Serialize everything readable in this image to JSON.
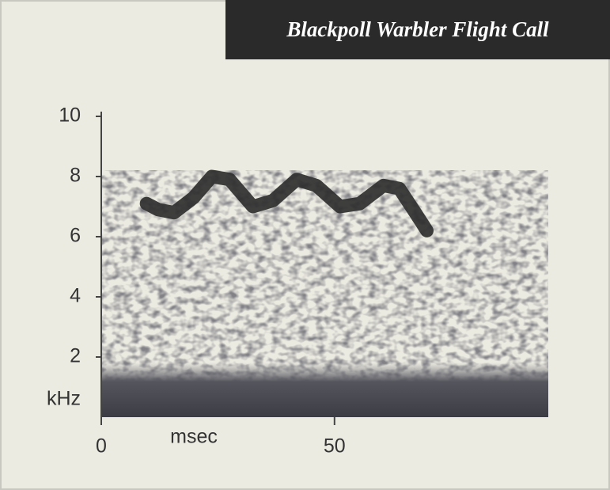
{
  "chart_data": {
    "type": "spectrogram",
    "title": "Blackpoll Warbler Flight Call",
    "x_label": "msec",
    "y_label": "kHz",
    "xlim": [
      0,
      96
    ],
    "xticks": [
      0,
      50
    ],
    "ylim": [
      0,
      10
    ],
    "yticks": [
      2,
      4,
      6,
      8,
      10
    ],
    "series": [
      {
        "name": "call contour",
        "color": "#2b2b2b",
        "x": [
          9.7,
          12.2,
          15.6,
          19.8,
          23.7,
          27.5,
          32.5,
          36.8,
          41.9,
          46.1,
          51.2,
          55.4,
          60.5,
          63.9,
          67.3,
          69.8
        ],
        "values": [
          7.1,
          6.9,
          6.8,
          7.3,
          8.0,
          7.9,
          7.0,
          7.2,
          7.9,
          7.7,
          7.0,
          7.1,
          7.7,
          7.6,
          6.8,
          6.2
        ]
      }
    ]
  }
}
